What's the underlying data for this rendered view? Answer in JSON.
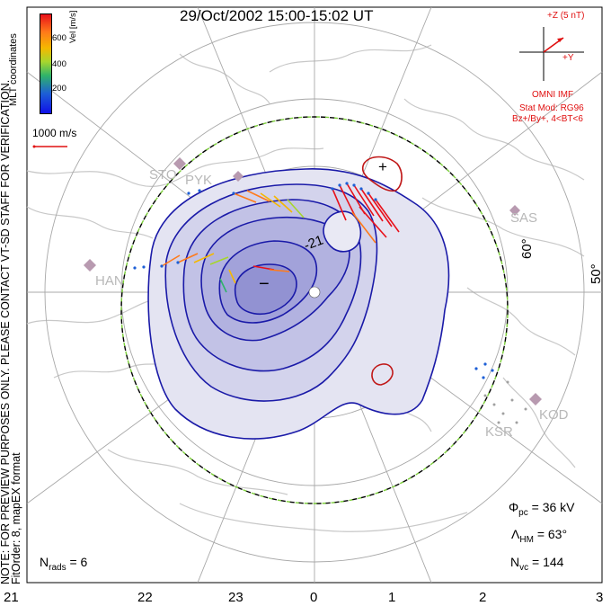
{
  "header": {
    "title": "29/Oct/2002 15:00-15:02 UT"
  },
  "side_notes": {
    "watermark": "NOTE: FOR PREVIEW PURPOSES ONLY. PLEASE CONTACT VT-SD STAFF FOR VERIFICATION.",
    "fit_info": "FitOrder: 8, mapEX format",
    "coordinates": "MLT coordinates"
  },
  "colorbar": {
    "unit": "Vel [m/s]",
    "ticks": [
      "600",
      "400",
      "200"
    ],
    "colors": [
      "#e8101a",
      "#ff7a1a",
      "#f5b800",
      "#a6d62e",
      "#2fb36a",
      "#1d5fd6",
      "#1010e8"
    ]
  },
  "vector_scale": {
    "label": "1000 m/s"
  },
  "imf": {
    "z_label": "+Z (5 nT)",
    "y_label": "+Y",
    "source": "OMNI IMF",
    "model": "Stat Mod: RG96",
    "condition": "Bz+/By+, 4<BT<6",
    "color": "#e01010"
  },
  "map": {
    "lat_labels": [
      "60°",
      "50°"
    ],
    "center_marker": "+",
    "potential_label": "-21",
    "min_marker": "−",
    "radar_sites": [
      "STO",
      "PYK",
      "HAN",
      "SAS",
      "KOD",
      "KSR"
    ],
    "convection_color": "#1a1aa8",
    "hm_boundary_color": "#7ccf3a"
  },
  "stats": {
    "phi_pc_label": "Φ",
    "phi_pc_sub": "pc",
    "phi_pc_value": "= 36 kV",
    "lambda_label": "Λ",
    "lambda_sub": "HM",
    "lambda_value": "= 63°",
    "nvc_label": "N",
    "nvc_sub": "vc",
    "nvc_value": "= 144",
    "nrads_label": "N",
    "nrads_sub": "rads",
    "nrads_value": "= 6"
  },
  "mlt_ticks": [
    "21",
    "22",
    "23",
    "0",
    "1",
    "2",
    "3"
  ]
}
